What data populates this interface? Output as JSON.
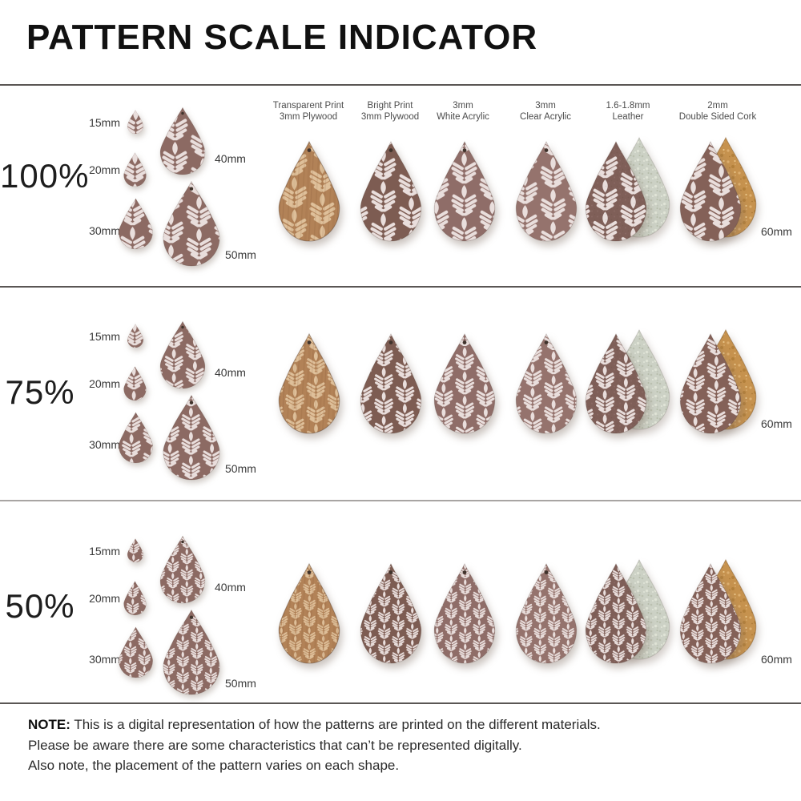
{
  "title": "PATTERN SCALE INDICATOR",
  "header_columns": [
    {
      "line1": "Transparent Print",
      "line2": "3mm Plywood"
    },
    {
      "line1": "Bright Print",
      "line2": "3mm Plywood"
    },
    {
      "line1": "3mm",
      "line2": "White Acrylic"
    },
    {
      "line1": "3mm",
      "line2": "Clear Acrylic"
    },
    {
      "line1": "1.6-1.8mm",
      "line2": "Leather"
    },
    {
      "line1": "2mm",
      "line2": "Double Sided Cork"
    }
  ],
  "rows": [
    {
      "scale_label": "100%",
      "pattern_scale": 1
    },
    {
      "scale_label": "75%",
      "pattern_scale": 0.75
    },
    {
      "scale_label": "50%",
      "pattern_scale": 0.5
    }
  ],
  "size_labels": {
    "s15": "15mm",
    "s20": "20mm",
    "s30": "30mm",
    "s40": "40mm",
    "s50": "50mm",
    "s60": "60mm"
  },
  "note": {
    "label": "NOTE:",
    "line1": "This is a digital representation of how the patterns are printed on the different materials.",
    "line2": "Please be aware there are some characteristics that can’t be represented digitally.",
    "line3": "Also note, the placement of the pattern varies on each shape."
  },
  "materials": [
    {
      "id": "plywood-transparent",
      "base": "#b28257",
      "leaf": "#dfc09a",
      "hole": true,
      "texture": "wood"
    },
    {
      "id": "plywood-bright",
      "base": "#7d5c52",
      "leaf": "#e9dedc",
      "hole": true
    },
    {
      "id": "white-acrylic",
      "base": "#8f6d68",
      "leaf": "#e9dedc",
      "hole": true
    },
    {
      "id": "clear-acrylic",
      "base": "#95736d",
      "leaf": "#e9dedc",
      "hole": true
    },
    {
      "id": "leather",
      "base": "#7f5f58",
      "leaf": "#e7dcda",
      "hole": false,
      "backing": "suede",
      "backing_color": "#ccd1c5"
    },
    {
      "id": "cork",
      "base": "#846158",
      "leaf": "#e7dcda",
      "hole": false,
      "backing": "cork",
      "backing_color": "#c6924e"
    }
  ],
  "guide_drop": {
    "base": "#8c6a63",
    "leaf": "#e9dedc"
  },
  "colors": {
    "hole": "#40332c",
    "divider_dark": "#5a5654",
    "divider_light": "#a8a5a3",
    "title_text": "#111111",
    "body_text": "#2b2b2b"
  }
}
